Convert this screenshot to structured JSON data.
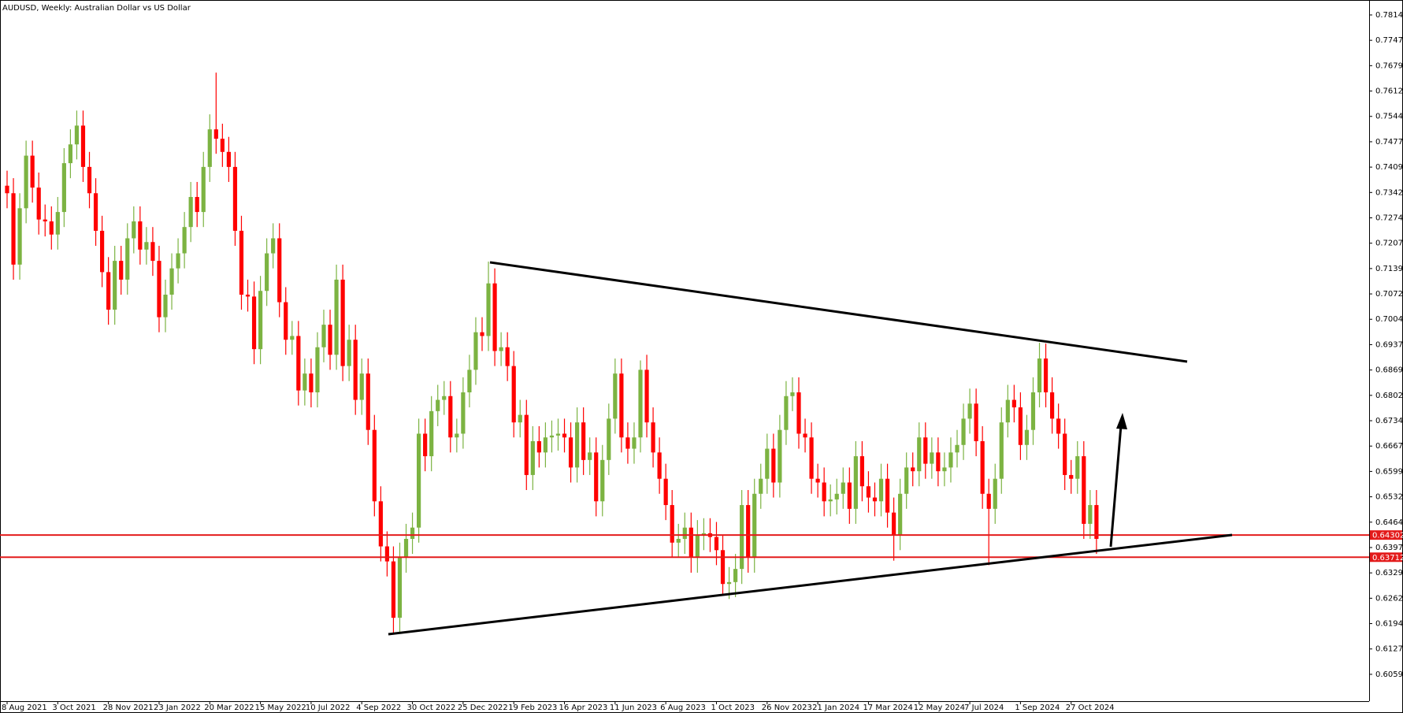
{
  "chart_data": {
    "type": "candlestick",
    "title": "AUDUSD, Weekly:  Australian Dollar vs US Dollar",
    "categories": [
      "8 Aug 2021",
      null,
      null,
      null,
      null,
      null,
      null,
      null,
      "3 Oct 2021",
      null,
      null,
      null,
      null,
      null,
      null,
      null,
      "28 Nov 2021",
      null,
      null,
      null,
      null,
      null,
      null,
      null,
      "23 Jan 2022",
      null,
      null,
      null,
      null,
      null,
      null,
      null,
      "20 Mar 2022",
      null,
      null,
      null,
      null,
      null,
      null,
      null,
      "15 May 2022",
      null,
      null,
      null,
      null,
      null,
      null,
      null,
      "10 Jul 2022",
      null,
      null,
      null,
      null,
      null,
      null,
      null,
      "4 Sep 2022",
      null,
      null,
      null,
      null,
      null,
      null,
      null,
      "30 Oct 2022",
      null,
      null,
      null,
      null,
      null,
      null,
      null,
      "25 Dec 2022",
      null,
      null,
      null,
      null,
      null,
      null,
      null,
      "19 Feb 2023",
      null,
      null,
      null,
      null,
      null,
      null,
      null,
      "16 Apr 2023",
      null,
      null,
      null,
      null,
      null,
      null,
      null,
      "11 Jun 2023",
      null,
      null,
      null,
      null,
      null,
      null,
      null,
      "6 Aug 2023",
      null,
      null,
      null,
      null,
      null,
      null,
      null,
      "1 Oct 2023",
      null,
      null,
      null,
      null,
      null,
      null,
      null,
      "26 Nov 2023",
      null,
      null,
      null,
      null,
      null,
      null,
      null,
      "21 Jan 2024",
      null,
      null,
      null,
      null,
      null,
      null,
      null,
      "17 Mar 2024",
      null,
      null,
      null,
      null,
      null,
      null,
      null,
      "12 May 2024",
      null,
      null,
      null,
      null,
      null,
      null,
      null,
      "7 Jul 2024",
      null,
      null,
      null,
      null,
      null,
      null,
      null,
      "1 Sep 2024",
      null,
      null,
      null,
      null,
      null,
      null,
      null,
      "27 Oct 2024",
      null,
      null,
      null,
      null
    ],
    "open": [
      0.736,
      0.734,
      0.715,
      0.73,
      0.744,
      0.7355,
      0.727,
      0.7265,
      0.723,
      0.729,
      0.742,
      0.747,
      0.752,
      0.741,
      0.734,
      0.724,
      0.713,
      0.703,
      0.716,
      0.711,
      0.722,
      0.7265,
      0.719,
      0.721,
      0.716,
      0.701,
      0.707,
      0.714,
      0.718,
      0.725,
      0.733,
      0.729,
      0.741,
      0.751,
      0.7485,
      0.745,
      0.741,
      0.724,
      0.707,
      0.7065,
      0.6925,
      0.708,
      0.718,
      0.722,
      0.705,
      0.695,
      0.696,
      0.6815,
      0.686,
      0.681,
      0.693,
      0.699,
      0.691,
      0.711,
      0.688,
      0.695,
      0.679,
      0.686,
      0.671,
      0.652,
      0.64,
      0.636,
      0.621,
      0.637,
      0.642,
      0.645,
      0.67,
      0.664,
      0.676,
      0.679,
      0.68,
      0.669,
      0.67,
      0.681,
      0.687,
      0.697,
      0.696,
      0.71,
      0.692,
      0.693,
      0.688,
      0.673,
      0.675,
      0.659,
      0.668,
      0.665,
      0.669,
      0.6695,
      0.67,
      0.669,
      0.661,
      0.673,
      0.663,
      0.665,
      0.652,
      0.663,
      0.674,
      0.686,
      0.669,
      0.666,
      0.669,
      0.687,
      0.673,
      0.665,
      0.658,
      0.651,
      0.641,
      0.642,
      0.645,
      0.637,
      0.643,
      0.6435,
      0.6425,
      0.639,
      0.63,
      0.6305,
      0.634,
      0.651,
      0.637,
      0.654,
      0.658,
      0.666,
      0.657,
      0.671,
      0.68,
      0.681,
      0.67,
      0.669,
      0.658,
      0.657,
      0.652,
      0.6525,
      0.654,
      0.657,
      0.65,
      0.664,
      0.656,
      0.653,
      0.652,
      0.658,
      0.649,
      0.643,
      0.654,
      0.661,
      0.66,
      0.669,
      0.662,
      0.665,
      0.66,
      0.661,
      0.665,
      0.667,
      0.674,
      0.678,
      0.668,
      0.654,
      0.65,
      0.658,
      0.673,
      0.679,
      0.677,
      0.667,
      0.671,
      0.681,
      0.69,
      0.681,
      0.674,
      0.67,
      0.659,
      0.658,
      0.664,
      0.646,
      0.651
    ],
    "high": [
      0.74,
      0.738,
      0.734,
      0.748,
      0.748,
      0.7395,
      0.731,
      0.7305,
      0.733,
      0.746,
      0.751,
      0.756,
      0.756,
      0.745,
      0.738,
      0.728,
      0.717,
      0.72,
      0.72,
      0.726,
      0.7305,
      0.7305,
      0.725,
      0.725,
      0.72,
      0.711,
      0.718,
      0.722,
      0.729,
      0.737,
      0.737,
      0.745,
      0.755,
      0.7661,
      0.7525,
      0.749,
      0.745,
      0.728,
      0.711,
      0.7105,
      0.712,
      0.722,
      0.726,
      0.726,
      0.709,
      0.7,
      0.7,
      0.69,
      0.69,
      0.697,
      0.703,
      0.703,
      0.715,
      0.715,
      0.699,
      0.699,
      0.69,
      0.69,
      0.675,
      0.656,
      0.644,
      0.64,
      0.641,
      0.646,
      0.649,
      0.674,
      0.674,
      0.68,
      0.683,
      0.684,
      0.684,
      0.674,
      0.685,
      0.691,
      0.701,
      0.701,
      0.7158,
      0.714,
      0.697,
      0.697,
      0.692,
      0.679,
      0.679,
      0.672,
      0.672,
      0.673,
      0.6735,
      0.674,
      0.674,
      0.673,
      0.677,
      0.677,
      0.669,
      0.669,
      0.667,
      0.678,
      0.69,
      0.69,
      0.673,
      0.673,
      0.6895,
      0.691,
      0.677,
      0.669,
      0.662,
      0.655,
      0.646,
      0.649,
      0.649,
      0.647,
      0.6475,
      0.6475,
      0.6465,
      0.643,
      0.6345,
      0.638,
      0.655,
      0.655,
      0.658,
      0.662,
      0.67,
      0.67,
      0.675,
      0.684,
      0.685,
      0.685,
      0.674,
      0.673,
      0.662,
      0.661,
      0.6565,
      0.658,
      0.661,
      0.661,
      0.668,
      0.668,
      0.66,
      0.657,
      0.662,
      0.662,
      0.653,
      0.658,
      0.665,
      0.665,
      0.673,
      0.673,
      0.669,
      0.669,
      0.665,
      0.669,
      0.671,
      0.678,
      0.682,
      0.682,
      0.672,
      0.658,
      0.662,
      0.677,
      0.683,
      0.683,
      0.681,
      0.675,
      0.685,
      0.6942,
      0.694,
      0.685,
      0.678,
      0.674,
      0.663,
      0.668,
      0.668,
      0.655,
      0.655
    ],
    "low": [
      0.73,
      0.711,
      0.711,
      0.726,
      0.7315,
      0.723,
      0.7225,
      0.719,
      0.719,
      0.725,
      0.738,
      0.743,
      0.737,
      0.73,
      0.72,
      0.709,
      0.699,
      0.699,
      0.707,
      0.707,
      0.718,
      0.715,
      0.715,
      0.712,
      0.697,
      0.697,
      0.703,
      0.71,
      0.714,
      0.721,
      0.725,
      0.725,
      0.737,
      0.7445,
      0.741,
      0.737,
      0.72,
      0.703,
      0.7025,
      0.6885,
      0.6885,
      0.704,
      0.714,
      0.701,
      0.691,
      0.691,
      0.6775,
      0.6775,
      0.677,
      0.677,
      0.689,
      0.687,
      0.687,
      0.684,
      0.684,
      0.675,
      0.675,
      0.667,
      0.648,
      0.636,
      0.632,
      0.617,
      0.617,
      0.633,
      0.638,
      0.641,
      0.66,
      0.66,
      0.672,
      0.675,
      0.665,
      0.665,
      0.666,
      0.677,
      0.683,
      0.692,
      0.692,
      0.688,
      0.688,
      0.684,
      0.669,
      0.669,
      0.655,
      0.655,
      0.661,
      0.661,
      0.665,
      0.6655,
      0.665,
      0.657,
      0.657,
      0.659,
      0.659,
      0.648,
      0.648,
      0.659,
      0.67,
      0.665,
      0.662,
      0.662,
      0.665,
      0.669,
      0.661,
      0.654,
      0.647,
      0.637,
      0.637,
      0.638,
      0.633,
      0.633,
      0.639,
      0.6385,
      0.635,
      0.627,
      0.626,
      0.6265,
      0.63,
      0.633,
      0.633,
      0.65,
      0.654,
      0.653,
      0.653,
      0.667,
      0.676,
      0.666,
      0.665,
      0.654,
      0.653,
      0.648,
      0.648,
      0.6485,
      0.65,
      0.646,
      0.646,
      0.652,
      0.649,
      0.648,
      0.648,
      0.645,
      0.6362,
      0.639,
      0.65,
      0.656,
      0.656,
      0.658,
      0.658,
      0.656,
      0.656,
      0.657,
      0.661,
      0.663,
      0.67,
      0.664,
      0.65,
      0.635,
      0.646,
      0.654,
      0.669,
      0.673,
      0.663,
      0.663,
      0.667,
      0.677,
      0.677,
      0.67,
      0.666,
      0.655,
      0.654,
      0.654,
      0.642,
      0.642,
      0.638
    ],
    "close": [
      0.734,
      0.715,
      0.73,
      0.744,
      0.7355,
      0.727,
      0.7265,
      0.723,
      0.729,
      0.742,
      0.747,
      0.752,
      0.741,
      0.734,
      0.724,
      0.713,
      0.703,
      0.716,
      0.711,
      0.722,
      0.7265,
      0.719,
      0.721,
      0.716,
      0.701,
      0.707,
      0.714,
      0.718,
      0.725,
      0.733,
      0.729,
      0.741,
      0.751,
      0.7485,
      0.745,
      0.741,
      0.724,
      0.707,
      0.7065,
      0.6925,
      0.708,
      0.718,
      0.722,
      0.705,
      0.695,
      0.696,
      0.6815,
      0.686,
      0.681,
      0.693,
      0.699,
      0.691,
      0.711,
      0.688,
      0.695,
      0.679,
      0.686,
      0.671,
      0.652,
      0.64,
      0.636,
      0.621,
      0.637,
      0.642,
      0.645,
      0.67,
      0.664,
      0.676,
      0.679,
      0.68,
      0.669,
      0.67,
      0.681,
      0.687,
      0.697,
      0.696,
      0.71,
      0.692,
      0.693,
      0.688,
      0.673,
      0.675,
      0.659,
      0.668,
      0.665,
      0.669,
      0.6695,
      0.67,
      0.669,
      0.661,
      0.673,
      0.663,
      0.665,
      0.652,
      0.663,
      0.674,
      0.686,
      0.669,
      0.666,
      0.669,
      0.687,
      0.673,
      0.665,
      0.658,
      0.651,
      0.641,
      0.642,
      0.645,
      0.637,
      0.643,
      0.6435,
      0.6425,
      0.639,
      0.63,
      0.6305,
      0.634,
      0.651,
      0.637,
      0.654,
      0.658,
      0.666,
      0.657,
      0.671,
      0.68,
      0.681,
      0.67,
      0.669,
      0.658,
      0.657,
      0.652,
      0.6525,
      0.654,
      0.657,
      0.65,
      0.664,
      0.656,
      0.653,
      0.652,
      0.658,
      0.649,
      0.643,
      0.654,
      0.661,
      0.66,
      0.669,
      0.662,
      0.665,
      0.66,
      0.661,
      0.665,
      0.667,
      0.674,
      0.678,
      0.668,
      0.654,
      0.65,
      0.658,
      0.673,
      0.679,
      0.677,
      0.667,
      0.671,
      0.681,
      0.69,
      0.681,
      0.674,
      0.67,
      0.659,
      0.658,
      0.664,
      0.646,
      0.651,
      0.642
    ],
    "up_color": "#7cb342",
    "down_color": "#ff0000",
    "ylim": [
      0.5988,
      0.7848
    ],
    "yticks": [
      0.78145,
      {
        "value": 0.7747,
        "label": "0.77470"
      },
      0.76795,
      {
        "value": 0.7612,
        "label": "0.76120"
      },
      0.75445,
      {
        "value": 0.7477,
        "label": "0.74770"
      },
      0.74095,
      {
        "value": 0.7342,
        "label": "0.73420"
      },
      0.72745,
      {
        "value": 0.7207,
        "label": "0.72070"
      },
      0.71395,
      {
        "value": 0.7072,
        "label": "0.70720"
      },
      0.70045,
      {
        "value": 0.6937,
        "label": "0.69370"
      },
      0.68695,
      {
        "value": 0.6802,
        "label": "0.68020"
      },
      0.67345,
      {
        "value": 0.6667,
        "label": "0.66670"
      },
      0.65995,
      {
        "value": 0.6532,
        "label": "0.65320"
      },
      0.64645,
      {
        "value": 0.6397,
        "label": "0.63970"
      },
      0.63295,
      {
        "value": 0.6262,
        "label": "0.62620"
      },
      0.61945,
      {
        "value": 0.6127,
        "label": "0.61270"
      },
      0.60595
    ],
    "levels": [
      {
        "value": 0.64302,
        "color": "#e31b1b"
      },
      {
        "value": 0.63712,
        "color": "#e31b1b"
      }
    ]
  }
}
